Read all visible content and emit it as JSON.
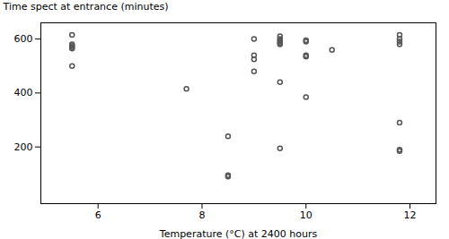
{
  "chart_data": {
    "type": "scatter",
    "x": [
      5.5,
      5.5,
      5.5,
      5.5,
      5.5,
      5.5,
      7.7,
      8.5,
      8.5,
      8.5,
      9.0,
      9.0,
      9.0,
      9.0,
      9.5,
      9.5,
      9.5,
      9.5,
      9.5,
      9.5,
      9.5,
      9.5,
      10.0,
      10.0,
      10.0,
      10.0,
      10.0,
      10.5,
      11.8,
      11.8,
      11.8,
      11.8,
      11.8,
      11.8,
      11.8
    ],
    "values": [
      615,
      580,
      575,
      570,
      565,
      500,
      415,
      240,
      95,
      90,
      600,
      540,
      525,
      480,
      610,
      600,
      595,
      590,
      585,
      580,
      195,
      440,
      595,
      590,
      540,
      535,
      385,
      560,
      615,
      600,
      590,
      580,
      290,
      190,
      185
    ],
    "xlabel": "Temperature (°C) at 2400 hours",
    "ylabel": "Time spect at entrance (minutes)",
    "xlim": [
      4.9,
      12.5
    ],
    "ylim": [
      -10,
      660
    ],
    "xticks": [
      6,
      8,
      10,
      12
    ],
    "yticks": [
      200,
      400,
      600
    ],
    "color": "#555555",
    "marker": "circle",
    "grid": false
  }
}
